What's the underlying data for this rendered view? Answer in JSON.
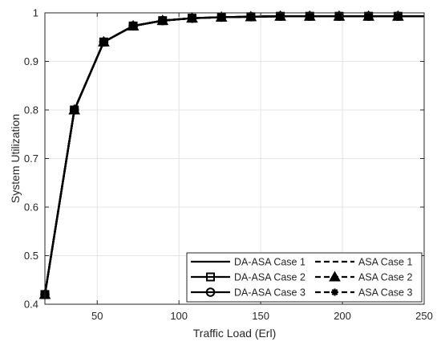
{
  "chart_data": {
    "type": "line",
    "xlabel": "Traffic Load (Erl)",
    "ylabel": "System Utilization",
    "xlim": [
      18,
      250
    ],
    "ylim": [
      0.4,
      1.0
    ],
    "xticks": [
      50,
      100,
      150,
      200,
      250
    ],
    "yticks": [
      0.4,
      0.5,
      0.6,
      0.7,
      0.8,
      0.9,
      1
    ],
    "grid": true,
    "legend_position": "bottom-right",
    "x": [
      18,
      36,
      54,
      72,
      90,
      108,
      126,
      144,
      162,
      180,
      198,
      216,
      234,
      250
    ],
    "series": [
      {
        "name": "DA-ASA Case 1",
        "line": "solid",
        "marker": "none",
        "values": [
          0.42,
          0.8,
          0.94,
          0.973,
          0.984,
          0.989,
          0.991,
          0.992,
          0.993,
          0.993,
          0.993,
          0.993,
          0.993,
          0.993
        ]
      },
      {
        "name": "ASA Case 1",
        "line": "dashed",
        "marker": "none",
        "values": [
          0.42,
          0.8,
          0.94,
          0.973,
          0.984,
          0.989,
          0.991,
          0.992,
          0.993,
          0.993,
          0.993,
          0.993,
          0.993,
          0.993
        ]
      },
      {
        "name": "DA-ASA Case 2",
        "line": "solid",
        "marker": "square",
        "values": [
          0.42,
          0.8,
          0.94,
          0.973,
          0.984,
          0.989,
          0.991,
          0.992,
          0.993,
          0.993,
          0.993,
          0.993,
          0.993,
          0.993
        ]
      },
      {
        "name": "ASA Case 2",
        "line": "dashed",
        "marker": "triangle",
        "values": [
          0.42,
          0.8,
          0.94,
          0.973,
          0.984,
          0.989,
          0.991,
          0.992,
          0.993,
          0.993,
          0.993,
          0.993,
          0.993,
          0.993
        ]
      },
      {
        "name": "DA-ASA Case 3",
        "line": "solid",
        "marker": "circle",
        "values": [
          0.42,
          0.8,
          0.94,
          0.973,
          0.984,
          0.989,
          0.991,
          0.992,
          0.993,
          0.993,
          0.993,
          0.993,
          0.993,
          0.993
        ]
      },
      {
        "name": "ASA Case 3",
        "line": "dashed",
        "marker": "asterisk",
        "values": [
          0.42,
          0.8,
          0.94,
          0.973,
          0.984,
          0.989,
          0.991,
          0.992,
          0.993,
          0.993,
          0.993,
          0.993,
          0.993,
          0.993
        ]
      }
    ],
    "colors": {
      "line": "#000000",
      "grid": "#dcdcdc",
      "axis": "#262626"
    }
  }
}
